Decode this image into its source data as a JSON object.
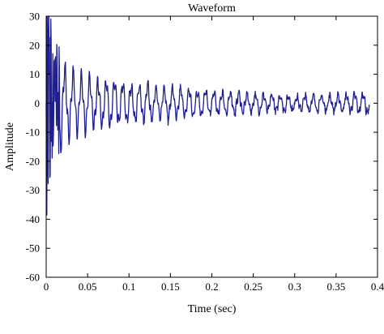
{
  "chart_data": {
    "type": "line",
    "title": "Waveform",
    "xlabel": "Time (sec)",
    "ylabel": "Amplitude",
    "xlim": [
      0,
      0.4
    ],
    "ylim": [
      -60,
      30
    ],
    "xticks": [
      0,
      0.05,
      0.1,
      0.15,
      0.2,
      0.25,
      0.3,
      0.35,
      0.4
    ],
    "xtick_labels": [
      "0",
      "0.05",
      "0.1",
      "0.15",
      "0.2",
      "0.25",
      "0.3",
      "0.35",
      "0.4"
    ],
    "yticks": [
      -60,
      -50,
      -40,
      -30,
      -20,
      -10,
      0,
      10,
      20,
      30
    ],
    "ytick_labels": [
      "-60",
      "-50",
      "-40",
      "-30",
      "-20",
      "-10",
      "0",
      "10",
      "20",
      "30"
    ],
    "grid": false,
    "line_color": "#1f1f8f",
    "series": [
      {
        "x": [
          0,
          0.001,
          0.002,
          0.003,
          0.004,
          0.005,
          0.006,
          0.007,
          0.008,
          0.009,
          0.01,
          0.011,
          0.012,
          0.013,
          0.014,
          0.016,
          0.018,
          0.02,
          0.022,
          0.024,
          0.027,
          0.03,
          0.035,
          0.04,
          0.05,
          0.06,
          0.08,
          0.1,
          0.12,
          0.15,
          0.18,
          0.2,
          0.23,
          0.25,
          0.28,
          0.3,
          0.33,
          0.35,
          0.37,
          0.38,
          0.39
        ],
        "y": [
          0,
          -52,
          25,
          -45,
          28,
          -38,
          30,
          -28,
          20,
          -25,
          15,
          -20,
          18,
          -30,
          12,
          -22,
          16,
          -15,
          14,
          -12,
          13,
          -10,
          12,
          -9,
          10,
          -8,
          8,
          -6,
          6,
          -5,
          4,
          -3,
          3,
          -2,
          2,
          -1.5,
          1.5,
          -1.5,
          2,
          2.5,
          3
        ]
      }
    ]
  }
}
